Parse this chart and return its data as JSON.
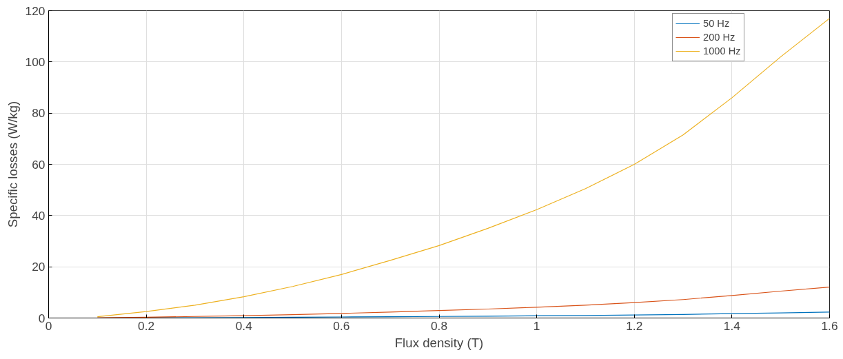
{
  "chart_data": {
    "type": "line",
    "xlabel": "Flux density (T)",
    "ylabel": "Specific losses (W/kg)",
    "x": [
      0.1,
      0.2,
      0.3,
      0.4,
      0.5,
      0.6,
      0.7,
      0.8,
      0.9,
      1.0,
      1.1,
      1.2,
      1.3,
      1.4,
      1.5,
      1.6
    ],
    "series": [
      {
        "name": "50 Hz",
        "color": "#0072bd",
        "values": [
          0,
          0.1,
          0.1,
          0.2,
          0.3,
          0.4,
          0.5,
          0.6,
          0.7,
          0.9,
          1,
          1.2,
          1.4,
          1.7,
          2,
          2.3
        ]
      },
      {
        "name": "200 Hz",
        "color": "#d95319",
        "values": [
          0.1,
          0.3,
          0.6,
          0.9,
          1.3,
          1.8,
          2.3,
          2.9,
          3.5,
          4.2,
          5.0,
          6.0,
          7.2,
          8.8,
          10.5,
          12.1
        ]
      },
      {
        "name": "1000 Hz",
        "color": "#edb120",
        "values": [
          0.5,
          2.5,
          5,
          8.3,
          12.3,
          17,
          22.5,
          28.3,
          35,
          42.3,
          50.5,
          60,
          71.5,
          86,
          102,
          117
        ]
      }
    ],
    "xlim": [
      0,
      1.6
    ],
    "xticks": [
      0,
      {
        "value": 0.2,
        "label": "0.2"
      },
      {
        "value": 0.4,
        "label": "0.4"
      },
      {
        "value": 0.6,
        "label": "0.6"
      },
      {
        "value": 0.8,
        "label": "0.8"
      },
      1,
      {
        "value": 1.2,
        "label": "1.2"
      },
      {
        "value": 1.4,
        "label": "1.4"
      },
      {
        "value": 1.6,
        "label": "1.6"
      }
    ],
    "ylim": [
      0,
      120
    ],
    "yticks": [
      0,
      20,
      40,
      60,
      80,
      100,
      120
    ],
    "grid": true,
    "legend": "top right",
    "marker": "none",
    "line_style": "solid"
  }
}
